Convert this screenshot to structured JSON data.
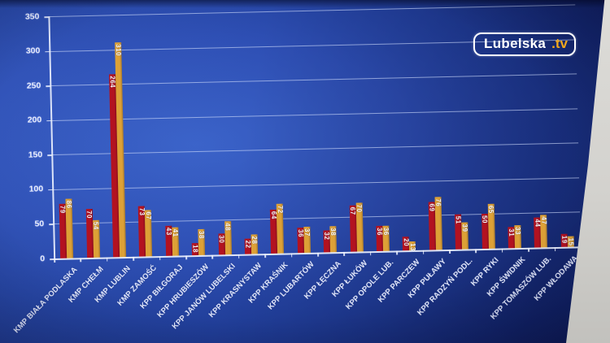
{
  "logo": {
    "name": "Lubelska",
    "tld": ".tv"
  },
  "colors": {
    "background_blue": "#2e4fb4",
    "bar_red": "#b31220",
    "bar_yellow": "#dda136",
    "grid": "#cddafa",
    "text": "#ffffff",
    "logo_accent": "#f2a81d",
    "screen_edge": "#d3d2ce"
  },
  "chart_data": {
    "type": "bar",
    "title": "",
    "xlabel": "",
    "ylabel": "",
    "ylim": [
      0,
      350
    ],
    "yticks": [
      0,
      50,
      100,
      150,
      200,
      250,
      300,
      350
    ],
    "grid": true,
    "legend": "none",
    "categories": [
      "KMP BIAŁA PODLASKA",
      "KMP CHEŁM",
      "KMP LUBLIN",
      "KMP ZAMOŚĆ",
      "KPP BIŁGORAJ",
      "KPP HRUBIESZÓW",
      "KPP JANÓW LUBELSKI",
      "KPP KRASNYSTAW",
      "KPP KRAŚNIK",
      "KPP LUBARTÓW",
      "KPP ŁĘCZNA",
      "KPP ŁUKÓW",
      "KPP OPOLE LUB.",
      "KPP PARCZEW",
      "KPP PUŁAWY",
      "KPP RADZYŃ PODL.",
      "KPP RYKI",
      "KPP ŚWIDNIK",
      "KPP TOMASZÓW LUB.",
      "KPP WŁODAWA"
    ],
    "series": [
      {
        "name": "red",
        "color": "#b31220",
        "values": [
          79,
          70,
          264,
          73,
          43,
          18,
          30,
          22,
          64,
          36,
          32,
          67,
          36,
          20,
          69,
          51,
          50,
          31,
          44,
          19
        ]
      },
      {
        "name": "yellow",
        "color": "#dda136",
        "values": [
          86,
          54,
          310,
          67,
          41,
          38,
          48,
          28,
          72,
          37,
          38,
          70,
          36,
          13,
          76,
          39,
          65,
          33,
          47,
          15
        ]
      }
    ]
  }
}
